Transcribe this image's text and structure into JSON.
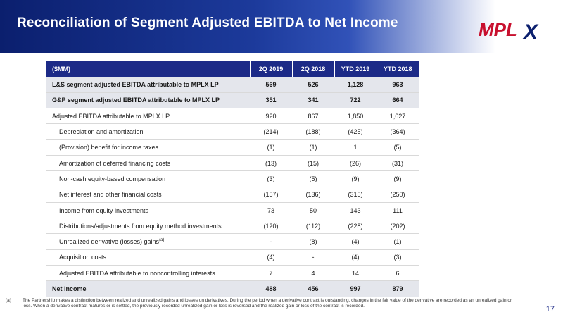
{
  "slide": {
    "title": "Reconciliation of Segment Adjusted EBITDA to Net Income",
    "logo_text": "MPLX",
    "page_number": "17",
    "colors": {
      "header_dark": "#0b1f6e",
      "table_header": "#1c2a87",
      "bold_row_bg": "#e4e6ec",
      "logo_red": "#c8102e"
    }
  },
  "table": {
    "headers": [
      "($MM)",
      "2Q 2019",
      "2Q 2018",
      "YTD 2019",
      "YTD 2018"
    ],
    "rows": [
      {
        "label": "L&S segment adjusted EBITDA attributable to MPLX LP",
        "values": [
          "569",
          "526",
          "1,128",
          "963"
        ]
      },
      {
        "label": "G&P segment adjusted EBITDA attributable to MPLX LP",
        "values": [
          "351",
          "341",
          "722",
          "664"
        ]
      },
      {
        "label": "Adjusted EBITDA attributable to MPLX LP",
        "values": [
          "920",
          "867",
          "1,850",
          "1,627"
        ]
      },
      {
        "label": "Depreciation and amortization",
        "values": [
          "(214)",
          "(188)",
          "(425)",
          "(364)"
        ]
      },
      {
        "label": "(Provision) benefit for income taxes",
        "values": [
          "(1)",
          "(1)",
          "1",
          "(5)"
        ]
      },
      {
        "label": "Amortization of deferred financing costs",
        "values": [
          "(13)",
          "(15)",
          "(26)",
          "(31)"
        ]
      },
      {
        "label": "Non-cash equity-based compensation",
        "values": [
          "(3)",
          "(5)",
          "(9)",
          "(9)"
        ]
      },
      {
        "label": "Net interest and other financial costs",
        "values": [
          "(157)",
          "(136)",
          "(315)",
          "(250)"
        ]
      },
      {
        "label": "Income from equity investments",
        "values": [
          "73",
          "50",
          "143",
          "111"
        ]
      },
      {
        "label": "Distributions/adjustments from equity method investments",
        "values": [
          "(120)",
          "(112)",
          "(228)",
          "(202)"
        ]
      },
      {
        "label": "Unrealized derivative (losses) gains",
        "sup": "(a)",
        "values": [
          "-",
          "(8)",
          "(4)",
          "(1)"
        ]
      },
      {
        "label": "Acquisition costs",
        "values": [
          "(4)",
          "-",
          "(4)",
          "(3)"
        ]
      },
      {
        "label": "Adjusted EBITDA attributable to noncontrolling interests",
        "values": [
          "7",
          "4",
          "14",
          "6"
        ]
      },
      {
        "label": "Net income",
        "values": [
          "488",
          "456",
          "997",
          "879"
        ]
      }
    ]
  },
  "footnote": {
    "marker": "(a)",
    "text": "The Partnership makes a distinction between realized and unrealized gains and losses on derivatives. During the period when a derivative contract is outstanding, changes in the fair value of the derivative are recorded as an unrealized gain or loss. When a derivative contract matures or is settled, the previously recorded unrealized gain or loss is reversed and the realized gain or loss of the contract is recorded."
  }
}
